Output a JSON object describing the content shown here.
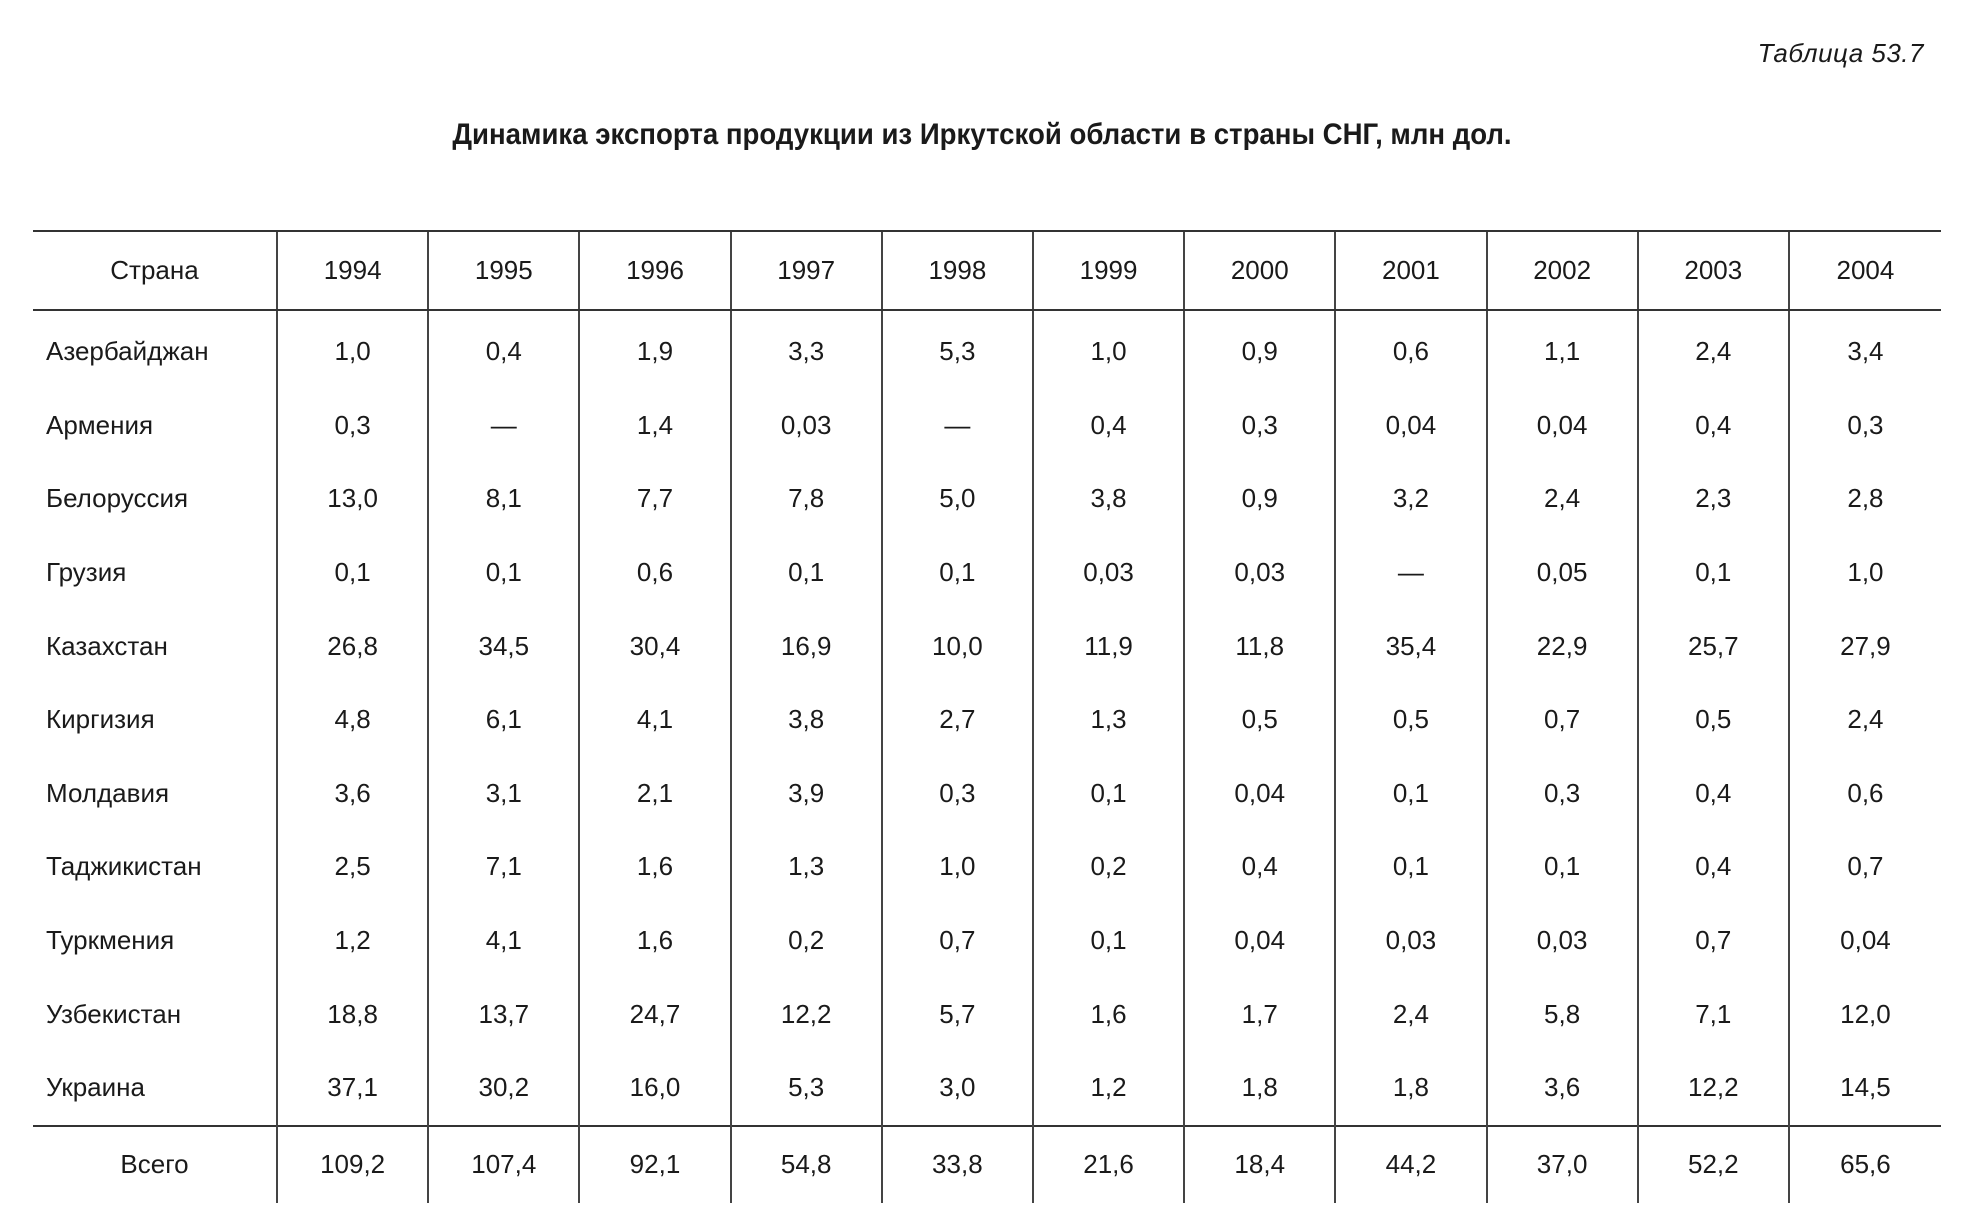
{
  "table_number": "Таблица 53.7",
  "title": "Динамика экспорта продукции из Иркутской области в страны СНГ, млн дол.",
  "table": {
    "header": [
      "Страна",
      "1994",
      "1995",
      "1996",
      "1997",
      "1998",
      "1999",
      "2000",
      "2001",
      "2002",
      "2003",
      "2004"
    ],
    "rows": [
      [
        "Азербайджан",
        "1,0",
        "0,4",
        "1,9",
        "3,3",
        "5,3",
        "1,0",
        "0,9",
        "0,6",
        "1,1",
        "2,4",
        "3,4"
      ],
      [
        "Армения",
        "0,3",
        "—",
        "1,4",
        "0,03",
        "—",
        "0,4",
        "0,3",
        "0,04",
        "0,04",
        "0,4",
        "0,3"
      ],
      [
        "Белоруссия",
        "13,0",
        "8,1",
        "7,7",
        "7,8",
        "5,0",
        "3,8",
        "0,9",
        "3,2",
        "2,4",
        "2,3",
        "2,8"
      ],
      [
        "Грузия",
        "0,1",
        "0,1",
        "0,6",
        "0,1",
        "0,1",
        "0,03",
        "0,03",
        "—",
        "0,05",
        "0,1",
        "1,0"
      ],
      [
        "Казахстан",
        "26,8",
        "34,5",
        "30,4",
        "16,9",
        "10,0",
        "11,9",
        "11,8",
        "35,4",
        "22,9",
        "25,7",
        "27,9"
      ],
      [
        "Киргизия",
        "4,8",
        "6,1",
        "4,1",
        "3,8",
        "2,7",
        "1,3",
        "0,5",
        "0,5",
        "0,7",
        "0,5",
        "2,4"
      ],
      [
        "Молдавия",
        "3,6",
        "3,1",
        "2,1",
        "3,9",
        "0,3",
        "0,1",
        "0,04",
        "0,1",
        "0,3",
        "0,4",
        "0,6"
      ],
      [
        "Таджикистан",
        "2,5",
        "7,1",
        "1,6",
        "1,3",
        "1,0",
        "0,2",
        "0,4",
        "0,1",
        "0,1",
        "0,4",
        "0,7"
      ],
      [
        "Туркмения",
        "1,2",
        "4,1",
        "1,6",
        "0,2",
        "0,7",
        "0,1",
        "0,04",
        "0,03",
        "0,03",
        "0,7",
        "0,04"
      ],
      [
        "Узбекистан",
        "18,8",
        "13,7",
        "24,7",
        "12,2",
        "5,7",
        "1,6",
        "1,7",
        "2,4",
        "5,8",
        "7,1",
        "12,0"
      ],
      [
        "Украина",
        "37,1",
        "30,2",
        "16,0",
        "5,3",
        "3,0",
        "1,2",
        "1,8",
        "1,8",
        "3,6",
        "12,2",
        "14,5"
      ]
    ],
    "total": [
      "Всего",
      "109,2",
      "107,4",
      "92,1",
      "54,8",
      "33,8",
      "21,6",
      "18,4",
      "44,2",
      "37,0",
      "52,2",
      "65,6"
    ]
  }
}
